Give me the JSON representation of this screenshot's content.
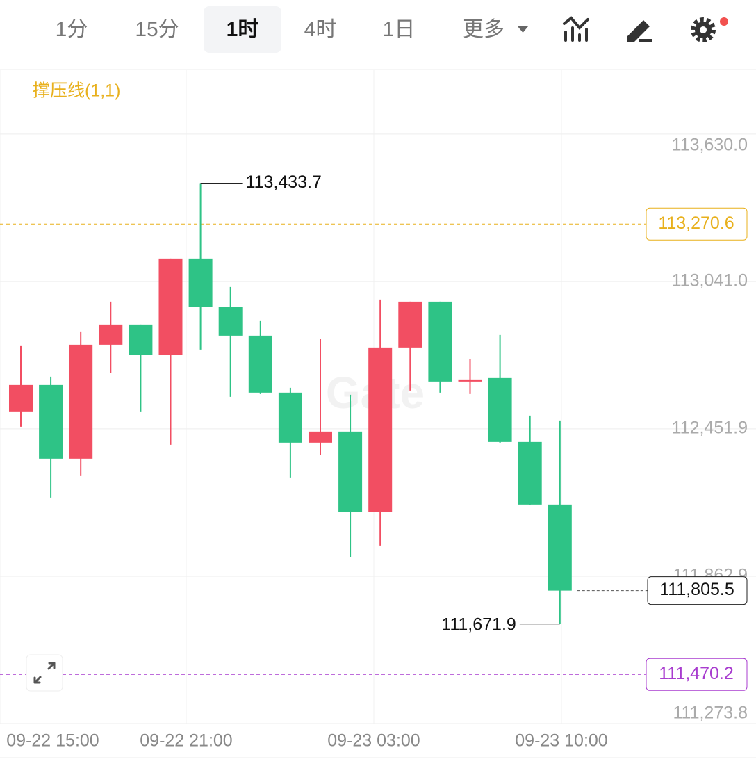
{
  "tabs": [
    "1分",
    "15分",
    "1时",
    "4时",
    "1日",
    "更多"
  ],
  "active_tab": 2,
  "chart_data": {
    "type": "candlestick",
    "indicator": "撑压线(1,1)",
    "watermark": "Gate",
    "up_color": "#f24e62",
    "down_color": "#2ec386",
    "ylim": [
      111273.8,
      113888
    ],
    "yticks": [
      {
        "value": 113630.0,
        "label": "113,630.0"
      },
      {
        "value": 113041.0,
        "label": "113,041.0"
      },
      {
        "value": 112451.9,
        "label": "112,451.9"
      },
      {
        "value": 111862.9,
        "label": "111,862.9"
      },
      {
        "value": 111273.8,
        "label": "111,273.8"
      }
    ],
    "xticks": [
      "09-22 15:00",
      "09-22 21:00",
      "09-23 03:00",
      "09-23 10:00"
    ],
    "candles": [
      {
        "open": 112518.8,
        "high": 112782.7,
        "low": 112460.4,
        "close": 112627.1
      },
      {
        "open": 112627.1,
        "high": 112660.4,
        "low": 112177.1,
        "close": 112332.7
      },
      {
        "open": 112332.7,
        "high": 112841.0,
        "low": 112263.2,
        "close": 112788.2
      },
      {
        "open": 112788.2,
        "high": 112960.4,
        "low": 112674.3,
        "close": 112868.8
      },
      {
        "open": 112868.8,
        "high": 112868.8,
        "low": 112518.8,
        "close": 112746.6
      },
      {
        "open": 112746.6,
        "high": 113132.7,
        "low": 112388.2,
        "close": 113132.7
      },
      {
        "open": 113132.7,
        "high": 113433.7,
        "low": 112768.8,
        "close": 112938.2
      },
      {
        "open": 112938.2,
        "high": 113018.8,
        "low": 112579.9,
        "close": 112824.3
      },
      {
        "open": 112824.3,
        "high": 112882.7,
        "low": 112591.0,
        "close": 112596.6
      },
      {
        "open": 112596.6,
        "high": 112616.0,
        "low": 112257.7,
        "close": 112396.6
      },
      {
        "open": 112396.6,
        "high": 112810.4,
        "low": 112346.6,
        "close": 112441.0
      },
      {
        "open": 112441.0,
        "high": 112588.2,
        "low": 111938.2,
        "close": 112118.8
      },
      {
        "open": 112118.8,
        "high": 112968.8,
        "low": 111985.4,
        "close": 112777.1
      },
      {
        "open": 112777.1,
        "high": 112960.4,
        "low": 112604.9,
        "close": 112960.4
      },
      {
        "open": 112960.4,
        "high": 112960.4,
        "low": 112596.6,
        "close": 112641.0
      },
      {
        "open": 112641.0,
        "high": 112729.9,
        "low": 112591.0,
        "close": 112649.3
      },
      {
        "open": 112654.9,
        "high": 112827.1,
        "low": 112393.8,
        "close": 112399.3
      },
      {
        "open": 112399.3,
        "high": 112504.9,
        "low": 112146.6,
        "close": 112149.3
      },
      {
        "open": 112149.3,
        "high": 112485.4,
        "low": 111671.9,
        "close": 111805.5
      }
    ],
    "high_label": {
      "candle": 6,
      "value": 113433.7,
      "label": "113,433.7"
    },
    "low_label": {
      "candle": 18,
      "value": 111671.9,
      "label": "111,671.9"
    },
    "levels": [
      {
        "value": 113270.6,
        "label": "113,270.6",
        "color": "#e8b01c"
      },
      {
        "value": 111470.2,
        "label": "111,470.2",
        "color": "#a83ccf"
      }
    ],
    "last": {
      "value": 111805.5,
      "label": "111,805.5"
    }
  }
}
